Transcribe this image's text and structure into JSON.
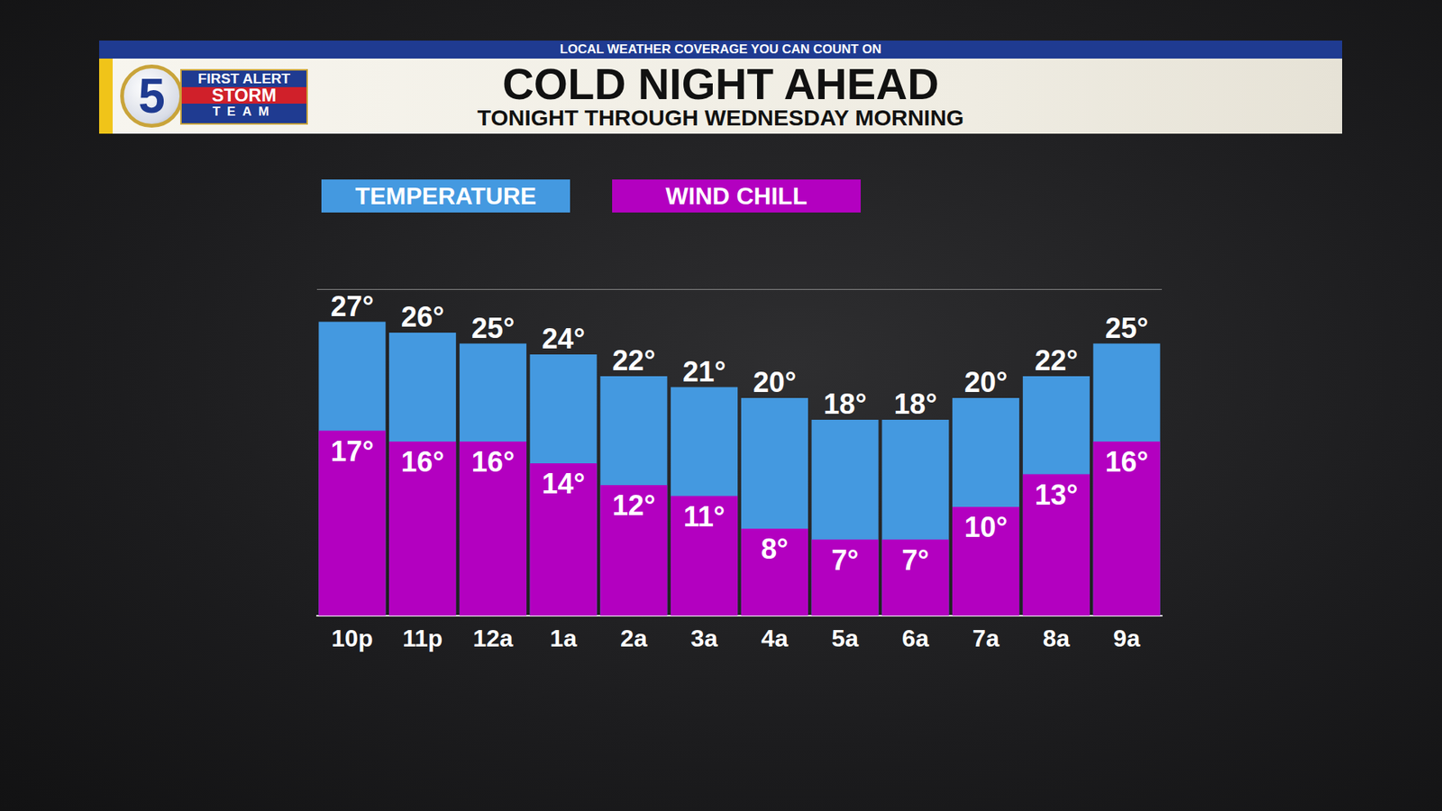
{
  "chart_data": {
    "type": "bar",
    "title": "COLD NIGHT AHEAD",
    "subtitle": "TONIGHT THROUGH WEDNESDAY MORNING",
    "annotations": [
      "LOCAL WEATHER COVERAGE YOU CAN COUNT ON"
    ],
    "logo": {
      "number": "5",
      "lines": [
        "FIRST ALERT",
        "STORM",
        "TEAM"
      ]
    },
    "categories": [
      "10p",
      "11p",
      "12a",
      "1a",
      "2a",
      "3a",
      "4a",
      "5a",
      "6a",
      "7a",
      "8a",
      "9a"
    ],
    "series": [
      {
        "name": "TEMPERATURE",
        "color": "#4499e0",
        "values": [
          27,
          26,
          25,
          24,
          22,
          21,
          20,
          18,
          18,
          20,
          22,
          25
        ],
        "value_labels": [
          "27°",
          "26°",
          "25°",
          "24°",
          "22°",
          "21°",
          "20°",
          "18°",
          "18°",
          "20°",
          "22°",
          "25°"
        ]
      },
      {
        "name": "WIND CHILL",
        "color": "#b300c0",
        "values": [
          17,
          16,
          16,
          14,
          12,
          11,
          8,
          7,
          7,
          10,
          13,
          16
        ],
        "value_labels": [
          "17°",
          "16°",
          "16°",
          "14°",
          "12°",
          "11°",
          "8°",
          "7°",
          "7°",
          "10°",
          "13°",
          "16°"
        ]
      }
    ],
    "ylim": [
      0,
      30
    ],
    "yticks": [
      0,
      30
    ],
    "grid": true,
    "legend": "top-left",
    "data_labels": true,
    "tick_labels": "x"
  }
}
